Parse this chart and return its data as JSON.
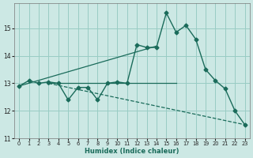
{
  "xlabel": "Humidex (Indice chaleur)",
  "bg_color": "#cce8e4",
  "grid_color": "#99ccc4",
  "line_color": "#1a6b5a",
  "xlim_min": -0.5,
  "xlim_max": 23.5,
  "ylim_min": 11.0,
  "ylim_max": 15.9,
  "yticks": [
    11,
    12,
    13,
    14,
    15
  ],
  "xticks": [
    0,
    1,
    2,
    3,
    4,
    5,
    6,
    7,
    8,
    9,
    10,
    11,
    12,
    13,
    14,
    15,
    16,
    17,
    18,
    19,
    20,
    21,
    22,
    23
  ],
  "line1_x": [
    0,
    1,
    2,
    3,
    4,
    5,
    6,
    7,
    8,
    9,
    10,
    11,
    12,
    13,
    14,
    15,
    16,
    17,
    18,
    19,
    20,
    21,
    22,
    23
  ],
  "line1_y": [
    12.9,
    13.1,
    13.0,
    13.05,
    13.0,
    12.4,
    12.85,
    12.85,
    12.4,
    13.0,
    13.05,
    13.0,
    14.4,
    14.3,
    14.3,
    15.55,
    14.85,
    15.1,
    14.6,
    13.5,
    13.1,
    12.8,
    12.0,
    11.5
  ],
  "line2_x": [
    0,
    14
  ],
  "line2_y": [
    12.9,
    14.35
  ],
  "line3_x": [
    3,
    16
  ],
  "line3_y": [
    13.0,
    13.0
  ],
  "line4_x": [
    3,
    23
  ],
  "line4_y": [
    13.0,
    11.5
  ]
}
